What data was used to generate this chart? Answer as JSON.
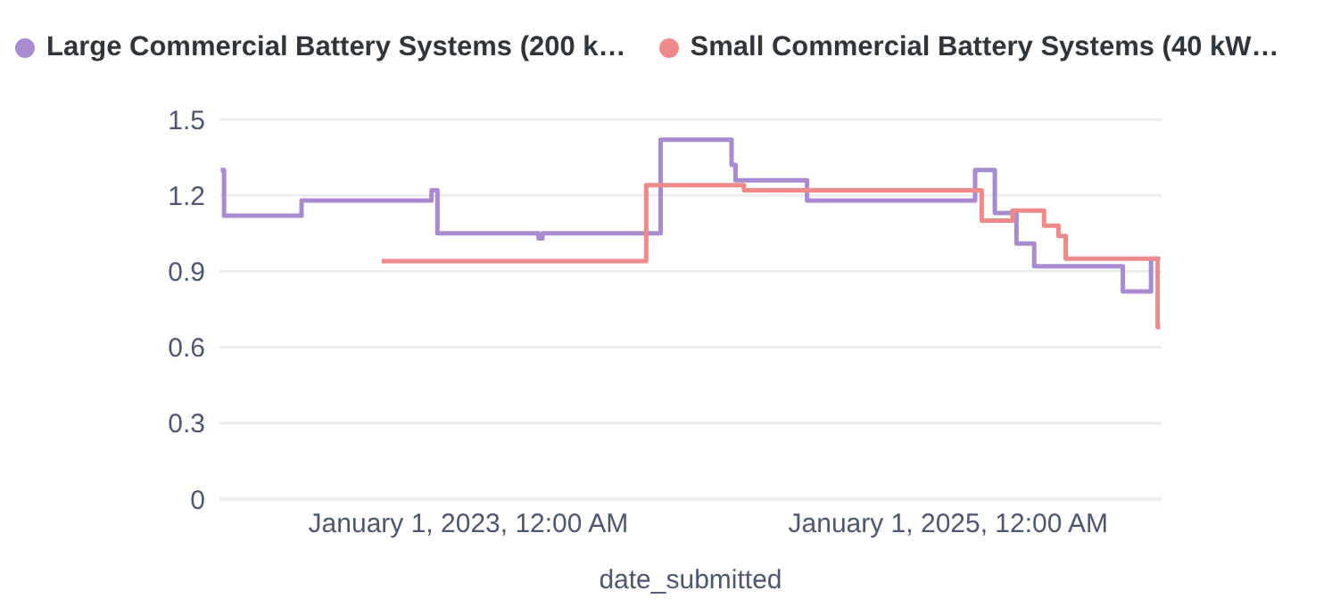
{
  "chart_data": {
    "type": "step",
    "xlabel": "date_submitted",
    "xlim": [
      "2021-12-18",
      "2025-11-22"
    ],
    "xticks": [
      {
        "value": "2023-01-01",
        "label": "January 1, 2023, 12:00 AM"
      },
      {
        "value": "2025-01-01",
        "label": "January 1, 2025, 12:00 AM"
      }
    ],
    "ylim": [
      0,
      1.5
    ],
    "yticks": [
      0,
      0.3,
      0.6,
      0.9,
      1.2,
      1.5
    ],
    "grid": "y",
    "legend": "top left",
    "marker": "none",
    "line_style": "solid",
    "series": [
      {
        "name": "Large Commercial Battery Systems (200 k…",
        "color": "#a98bd1",
        "x": [
          "2021-12-20",
          "2021-12-25",
          "2022-04-22",
          "2022-11-06",
          "2022-11-15",
          "2023-04-18",
          "2023-04-24",
          "2023-10-21",
          "2024-02-06",
          "2024-02-12",
          "2024-05-31",
          "2025-02-11",
          "2025-03-13",
          "2025-04-15",
          "2025-05-12",
          "2025-09-24",
          "2025-11-06",
          "2025-11-20"
        ],
        "values": [
          1.3,
          1.12,
          1.18,
          1.22,
          1.05,
          1.03,
          1.05,
          1.42,
          1.32,
          1.26,
          1.18,
          1.3,
          1.13,
          1.01,
          0.92,
          0.82,
          0.95,
          0.95
        ]
      },
      {
        "name": "Small Commercial Battery Systems (40 kW…",
        "color": "#ef8a8a",
        "x": [
          "2022-08-22",
          "2023-09-29",
          "2024-02-25",
          "2025-02-21",
          "2025-04-09",
          "2025-05-27",
          "2025-06-18",
          "2025-06-29",
          "2025-11-16",
          "2025-11-20"
        ],
        "values": [
          0.94,
          1.24,
          1.22,
          1.1,
          1.14,
          1.08,
          1.04,
          0.95,
          0.68,
          0.68
        ]
      }
    ]
  }
}
